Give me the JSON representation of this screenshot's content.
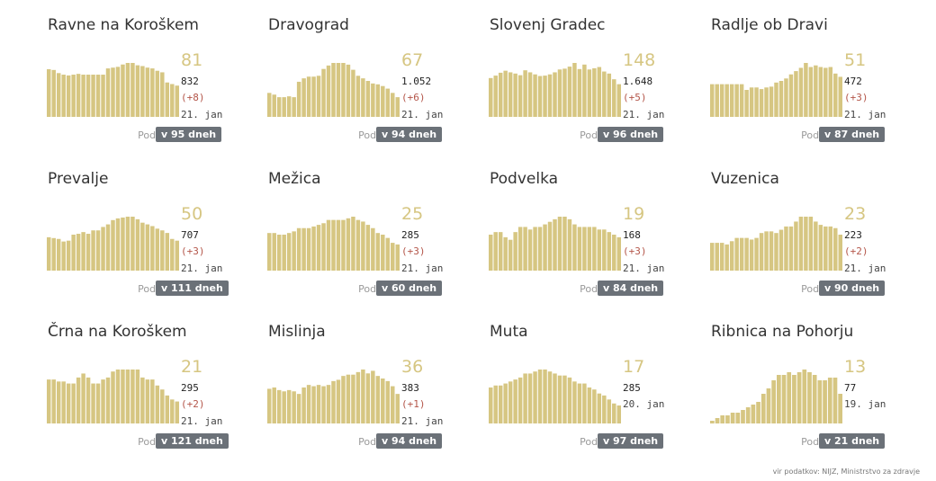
{
  "accent_color": "#d6c682",
  "delta_color": "#b4564a",
  "badge_color": "#6b7178",
  "source": "vir podatkov: NIJZ, Ministrstvo za zdravje",
  "doubling_label": "Podvojitev",
  "chart_data": [
    {
      "type": "bar",
      "title": "Ravne na Koroškem",
      "active": "81",
      "total": "832",
      "delta": "(+8)",
      "date": "21. jan",
      "doubling": "v 95 dneh",
      "values": [
        61,
        60,
        56,
        54,
        53,
        54,
        55,
        54,
        54,
        54,
        54,
        54,
        62,
        63,
        64,
        67,
        69,
        69,
        66,
        65,
        63,
        62,
        59,
        57,
        44,
        42,
        40
      ]
    },
    {
      "type": "bar",
      "title": "Dravograd",
      "active": "67",
      "total": "1.052",
      "delta": "(+6)",
      "date": "21. jan",
      "doubling": "v 94 dneh",
      "values": [
        28,
        26,
        23,
        23,
        24,
        23,
        41,
        45,
        47,
        47,
        48,
        56,
        60,
        63,
        63,
        63,
        61,
        55,
        48,
        45,
        42,
        39,
        38,
        36,
        33,
        28,
        23
      ]
    },
    {
      "type": "bar",
      "title": "Slovenj Gradec",
      "active": "148",
      "total": "1.648",
      "delta": "(+5)",
      "date": "21. jan",
      "doubling": "v 96 dneh",
      "values": [
        95,
        101,
        108,
        113,
        109,
        106,
        102,
        114,
        109,
        104,
        100,
        101,
        104,
        109,
        116,
        118,
        123,
        132,
        117,
        128,
        116,
        119,
        122,
        111,
        106,
        92,
        80
      ]
    },
    {
      "type": "bar",
      "title": "Radlje ob Dravi",
      "active": "51",
      "total": "472",
      "delta": "(+3)",
      "date": "21. jan",
      "doubling": "v 87 dneh",
      "values": [
        40,
        40,
        40,
        40,
        40,
        40,
        40,
        33,
        36,
        36,
        34,
        36,
        37,
        42,
        44,
        47,
        52,
        56,
        60,
        66,
        61,
        63,
        61,
        60,
        61,
        53,
        49
      ]
    },
    {
      "type": "bar",
      "title": "Prevalje",
      "active": "50",
      "total": "707",
      "delta": "(+3)",
      "date": "21. jan",
      "doubling": "v 111 dneh",
      "values": [
        39,
        38,
        37,
        34,
        35,
        42,
        43,
        45,
        43,
        47,
        47,
        51,
        54,
        59,
        61,
        62,
        63,
        63,
        60,
        56,
        54,
        52,
        49,
        47,
        44,
        37,
        35
      ]
    },
    {
      "type": "bar",
      "title": "Mežica",
      "active": "25",
      "total": "285",
      "delta": "(+3)",
      "date": "21. jan",
      "doubling": "v 60 dneh",
      "values": [
        23,
        23,
        22,
        22,
        23,
        24,
        26,
        26,
        26,
        27,
        28,
        29,
        31,
        31,
        31,
        31,
        32,
        33,
        31,
        30,
        28,
        26,
        23,
        22,
        20,
        17,
        16
      ]
    },
    {
      "type": "bar",
      "title": "Podvelka",
      "active": "19",
      "total": "168",
      "delta": "(+3)",
      "date": "21. jan",
      "doubling": "v 84 dneh",
      "values": [
        14,
        15,
        15,
        13,
        12,
        15,
        17,
        17,
        16,
        17,
        17,
        18,
        19,
        20,
        21,
        21,
        20,
        18,
        17,
        17,
        17,
        17,
        16,
        16,
        15,
        14,
        13
      ]
    },
    {
      "type": "bar",
      "title": "Vuzenica",
      "active": "23",
      "total": "223",
      "delta": "(+2)",
      "date": "21. jan",
      "doubling": "v 90 dneh",
      "values": [
        17,
        17,
        17,
        16,
        18,
        20,
        20,
        20,
        19,
        20,
        23,
        24,
        24,
        23,
        25,
        27,
        27,
        30,
        33,
        33,
        33,
        30,
        28,
        27,
        27,
        26,
        22
      ]
    },
    {
      "type": "bar",
      "title": "Črna na Koroškem",
      "active": "21",
      "total": "295",
      "delta": "(+2)",
      "date": "21. jan",
      "doubling": "v 121 dneh",
      "values": [
        22,
        22,
        21,
        21,
        20,
        20,
        23,
        25,
        23,
        20,
        20,
        22,
        23,
        26,
        27,
        27,
        27,
        27,
        27,
        23,
        22,
        22,
        19,
        17,
        14,
        12,
        11
      ]
    },
    {
      "type": "bar",
      "title": "Mislinja",
      "active": "36",
      "total": "383",
      "delta": "(+1)",
      "date": "21. jan",
      "doubling": "v 94 dneh",
      "values": [
        27,
        28,
        26,
        25,
        26,
        25,
        23,
        28,
        30,
        29,
        30,
        29,
        30,
        33,
        34,
        37,
        38,
        38,
        40,
        42,
        39,
        41,
        37,
        35,
        33,
        29,
        23
      ]
    },
    {
      "type": "bar",
      "title": "Muta",
      "active": "17",
      "total": "285",
      "delta": "",
      "date": "20. jan",
      "doubling": "v 97 dneh",
      "values": [
        18,
        19,
        19,
        20,
        21,
        22,
        23,
        25,
        25,
        26,
        27,
        27,
        26,
        25,
        24,
        24,
        23,
        21,
        20,
        20,
        18,
        17,
        15,
        14,
        12,
        10,
        9
      ]
    },
    {
      "type": "bar",
      "title": "Ribnica na Pohorju",
      "active": "13",
      "total": "77",
      "delta": "",
      "date": "19. jan",
      "doubling": "v 21 dneh",
      "values": [
        1,
        2,
        3,
        3,
        4,
        4,
        5,
        6,
        7,
        8,
        11,
        13,
        16,
        18,
        18,
        19,
        18,
        19,
        20,
        19,
        18,
        16,
        16,
        17,
        17,
        11
      ]
    }
  ]
}
